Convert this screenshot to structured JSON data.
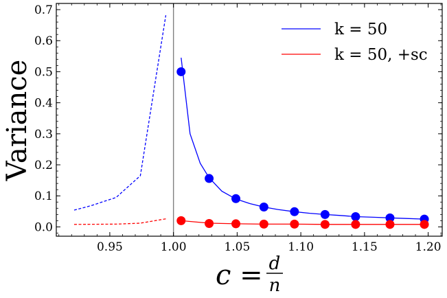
{
  "chart_data": {
    "type": "line",
    "xlabel_main": "c =",
    "xlabel_num": "d",
    "xlabel_den": "n",
    "ylabel": "Variance",
    "xlim": [
      0.908,
      1.211
    ],
    "ylim": [
      -0.03,
      0.72
    ],
    "grid": false,
    "legend_position": "top-right",
    "x_ticks": [
      0.95,
      1.0,
      1.05,
      1.1,
      1.15,
      1.2
    ],
    "x_tick_labels": [
      "0.95",
      "1.00",
      "1.05",
      "1.10",
      "1.15",
      "1.20"
    ],
    "y_ticks": [
      0.0,
      0.1,
      0.2,
      0.3,
      0.4,
      0.5,
      0.6,
      0.7
    ],
    "y_tick_labels": [
      "0.0",
      "0.1",
      "0.2",
      "0.3",
      "0.4",
      "0.5",
      "0.6",
      "0.7"
    ],
    "vline_x": 1.0,
    "series": [
      {
        "name": "k = 50",
        "color": "#0000ff",
        "dashed_x": [
          0.922,
          0.935,
          0.955,
          0.974,
          0.994
        ],
        "dashed_y": [
          0.054,
          0.068,
          0.095,
          0.165,
          0.682
        ],
        "line_x": [
          1.006,
          1.013,
          1.021,
          1.028,
          1.038,
          1.049,
          1.06,
          1.071,
          1.082,
          1.095,
          1.107,
          1.119,
          1.13,
          1.143,
          1.157,
          1.17,
          1.183,
          1.197
        ],
        "line_y": [
          0.545,
          0.3,
          0.205,
          0.158,
          0.115,
          0.09,
          0.075,
          0.064,
          0.056,
          0.049,
          0.044,
          0.04,
          0.037,
          0.033,
          0.031,
          0.029,
          0.027,
          0.025
        ],
        "marker_x": [
          1.006,
          1.028,
          1.049,
          1.071,
          1.095,
          1.119,
          1.143,
          1.17,
          1.197
        ],
        "marker_y": [
          0.5,
          0.156,
          0.091,
          0.064,
          0.049,
          0.04,
          0.033,
          0.029,
          0.025
        ]
      },
      {
        "name": "k = 50, +sc",
        "color": "#ff0000",
        "dashed_x": [
          0.922,
          0.955,
          0.974,
          0.994
        ],
        "dashed_y": [
          0.008,
          0.009,
          0.012,
          0.026
        ],
        "line_x": [
          1.006,
          1.028,
          1.049,
          1.071,
          1.095,
          1.119,
          1.143,
          1.17,
          1.197
        ],
        "line_y": [
          0.02,
          0.012,
          0.01,
          0.009,
          0.009,
          0.008,
          0.008,
          0.008,
          0.008
        ],
        "marker_x": [
          1.006,
          1.028,
          1.049,
          1.071,
          1.095,
          1.119,
          1.143,
          1.17,
          1.197
        ],
        "marker_y": [
          0.02,
          0.011,
          0.01,
          0.009,
          0.009,
          0.008,
          0.008,
          0.008,
          0.008
        ]
      }
    ]
  }
}
